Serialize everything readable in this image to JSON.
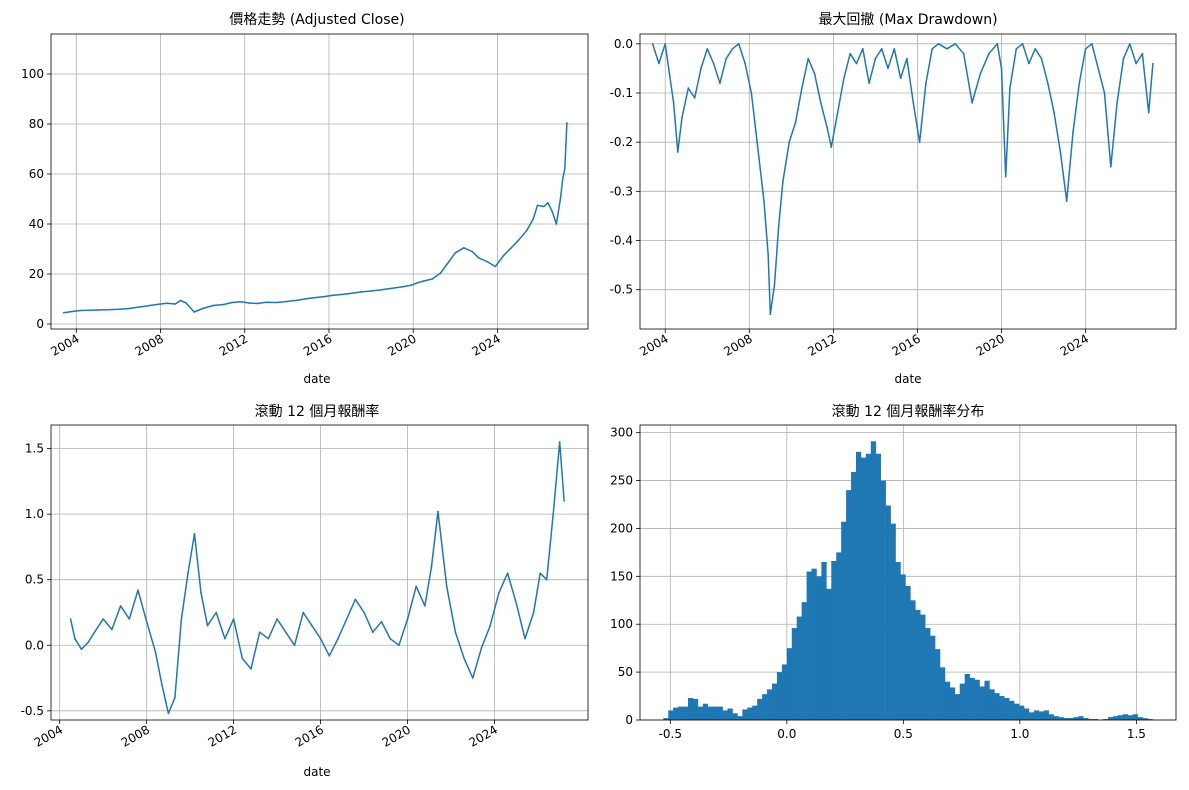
{
  "series_color": "#1f77b4",
  "chart_data": [
    {
      "type": "line",
      "title": "價格走勢 (Adjusted Close)",
      "xlabel": "date",
      "ylabel": "",
      "xlim": [
        2002.8,
        2028.3
      ],
      "ylim": [
        -2,
        116
      ],
      "xticks": [
        2004,
        2008,
        2012,
        2016,
        2020,
        2024
      ],
      "yticks": [
        0,
        20,
        40,
        60,
        80,
        100
      ],
      "ytick_labels": [
        "0",
        "20",
        "40",
        "60",
        "80",
        "100"
      ],
      "grid": true,
      "x": [
        2003.4,
        2003.8,
        2004.2,
        2004.6,
        2005.0,
        2005.5,
        2006.0,
        2006.5,
        2007.0,
        2007.5,
        2007.9,
        2008.3,
        2008.7,
        2008.95,
        2009.2,
        2009.6,
        2010.0,
        2010.5,
        2011.0,
        2011.4,
        2011.8,
        2012.2,
        2012.6,
        2013.0,
        2013.5,
        2014.0,
        2014.5,
        2015.0,
        2015.4,
        2015.8,
        2016.2,
        2016.6,
        2017.0,
        2017.5,
        2018.0,
        2018.5,
        2019.0,
        2019.5,
        2019.9,
        2020.2,
        2020.5,
        2020.9,
        2021.3,
        2021.7,
        2022.0,
        2022.4,
        2022.8,
        2023.1,
        2023.5,
        2023.9,
        2024.3,
        2024.6,
        2025.0,
        2025.4,
        2025.7,
        2025.9,
        2026.2,
        2026.4,
        2026.6,
        2026.8,
        2027.0,
        2027.1,
        2027.2,
        2027.3
      ],
      "y": [
        4.5,
        5.0,
        5.4,
        5.5,
        5.6,
        5.7,
        5.9,
        6.2,
        6.8,
        7.4,
        7.9,
        8.3,
        8.0,
        9.4,
        8.5,
        4.8,
        6.2,
        7.4,
        7.8,
        8.6,
        8.9,
        8.4,
        8.2,
        8.7,
        8.6,
        9.0,
        9.5,
        10.2,
        10.6,
        11.0,
        11.5,
        11.8,
        12.2,
        12.8,
        13.2,
        13.7,
        14.3,
        14.9,
        15.5,
        16.5,
        17.2,
        18.0,
        20.4,
        25.0,
        28.5,
        30.5,
        29.0,
        26.5,
        25.0,
        23.0,
        27.5,
        30.0,
        33.5,
        37.5,
        42.0,
        47.5,
        47.0,
        48.5,
        45.0,
        40.0,
        50.5,
        58.0,
        62.0,
        80.5
      ]
    },
    {
      "type": "line",
      "title": "最大回撤 (Max Drawdown)",
      "xlabel": "date",
      "ylabel": "",
      "xlim": [
        2002.8,
        2028.3
      ],
      "ylim": [
        -0.58,
        0.02
      ],
      "xticks": [
        2004,
        2008,
        2012,
        2016,
        2020,
        2024
      ],
      "yticks": [
        0.0,
        -0.1,
        -0.2,
        -0.3,
        -0.4,
        -0.5
      ],
      "ytick_labels": [
        "0.0",
        "-0.1",
        "-0.2",
        "-0.3",
        "-0.4",
        "-0.5"
      ],
      "grid": true,
      "x": [
        2003.4,
        2003.7,
        2004.0,
        2004.2,
        2004.4,
        2004.6,
        2004.8,
        2005.1,
        2005.4,
        2005.7,
        2006.0,
        2006.3,
        2006.6,
        2006.9,
        2007.2,
        2007.5,
        2007.8,
        2008.1,
        2008.4,
        2008.7,
        2008.9,
        2009.0,
        2009.2,
        2009.4,
        2009.6,
        2009.9,
        2010.2,
        2010.5,
        2010.8,
        2011.1,
        2011.4,
        2011.7,
        2011.9,
        2012.2,
        2012.5,
        2012.8,
        2013.1,
        2013.4,
        2013.7,
        2014.0,
        2014.3,
        2014.6,
        2014.9,
        2015.2,
        2015.5,
        2015.8,
        2016.1,
        2016.4,
        2016.7,
        2017.0,
        2017.4,
        2017.8,
        2018.2,
        2018.6,
        2019.0,
        2019.4,
        2019.8,
        2020.0,
        2020.2,
        2020.4,
        2020.7,
        2021.0,
        2021.3,
        2021.6,
        2021.9,
        2022.2,
        2022.5,
        2022.8,
        2023.1,
        2023.4,
        2023.7,
        2024.0,
        2024.3,
        2024.6,
        2024.9,
        2025.2,
        2025.5,
        2025.8,
        2026.1,
        2026.4,
        2026.7,
        2027.0,
        2027.2
      ],
      "y": [
        0.0,
        -0.04,
        0.0,
        -0.06,
        -0.12,
        -0.22,
        -0.15,
        -0.09,
        -0.11,
        -0.05,
        -0.01,
        -0.04,
        -0.08,
        -0.03,
        -0.01,
        0.0,
        -0.04,
        -0.1,
        -0.21,
        -0.32,
        -0.43,
        -0.55,
        -0.49,
        -0.37,
        -0.28,
        -0.2,
        -0.16,
        -0.09,
        -0.03,
        -0.06,
        -0.12,
        -0.17,
        -0.21,
        -0.14,
        -0.07,
        -0.02,
        -0.04,
        -0.01,
        -0.08,
        -0.03,
        -0.01,
        -0.05,
        -0.01,
        -0.07,
        -0.03,
        -0.12,
        -0.2,
        -0.08,
        -0.01,
        0.0,
        -0.01,
        0.0,
        -0.02,
        -0.12,
        -0.06,
        -0.02,
        0.0,
        -0.05,
        -0.27,
        -0.09,
        -0.01,
        0.0,
        -0.04,
        -0.01,
        -0.03,
        -0.08,
        -0.14,
        -0.22,
        -0.32,
        -0.18,
        -0.08,
        -0.01,
        0.0,
        -0.05,
        -0.1,
        -0.25,
        -0.12,
        -0.03,
        0.0,
        -0.04,
        -0.02,
        -0.14,
        -0.04
      ]
    },
    {
      "type": "line",
      "title": "滾動 12 個月報酬率",
      "xlabel": "date",
      "ylabel": "",
      "xlim": [
        2003.6,
        2028.3
      ],
      "ylim": [
        -0.57,
        1.68
      ],
      "xticks": [
        2004,
        2008,
        2012,
        2016,
        2020,
        2024
      ],
      "yticks": [
        -0.5,
        0.0,
        0.5,
        1.0,
        1.5
      ],
      "ytick_labels": [
        "-0.5",
        "0.0",
        "0.5",
        "1.0",
        "1.5"
      ],
      "grid": true,
      "x": [
        2004.5,
        2004.7,
        2005.0,
        2005.3,
        2005.6,
        2006.0,
        2006.4,
        2006.8,
        2007.2,
        2007.6,
        2008.0,
        2008.4,
        2008.7,
        2009.0,
        2009.3,
        2009.6,
        2009.9,
        2010.2,
        2010.5,
        2010.8,
        2011.2,
        2011.6,
        2012.0,
        2012.4,
        2012.8,
        2013.2,
        2013.6,
        2014.0,
        2014.4,
        2014.8,
        2015.2,
        2015.6,
        2016.0,
        2016.4,
        2016.8,
        2017.2,
        2017.6,
        2018.0,
        2018.4,
        2018.8,
        2019.2,
        2019.6,
        2020.0,
        2020.4,
        2020.8,
        2021.1,
        2021.4,
        2021.8,
        2022.2,
        2022.6,
        2023.0,
        2023.4,
        2023.8,
        2024.2,
        2024.6,
        2025.0,
        2025.4,
        2025.8,
        2026.1,
        2026.4,
        2026.7,
        2027.0,
        2027.2
      ],
      "y": [
        0.2,
        0.05,
        -0.03,
        0.02,
        0.1,
        0.2,
        0.12,
        0.3,
        0.2,
        0.42,
        0.18,
        -0.05,
        -0.3,
        -0.52,
        -0.4,
        0.2,
        0.55,
        0.85,
        0.4,
        0.15,
        0.25,
        0.05,
        0.2,
        -0.1,
        -0.18,
        0.1,
        0.05,
        0.2,
        0.1,
        0.0,
        0.25,
        0.15,
        0.05,
        -0.08,
        0.05,
        0.2,
        0.35,
        0.25,
        0.1,
        0.18,
        0.05,
        0.0,
        0.2,
        0.45,
        0.3,
        0.6,
        1.02,
        0.45,
        0.1,
        -0.1,
        -0.25,
        -0.02,
        0.15,
        0.4,
        0.55,
        0.32,
        0.05,
        0.25,
        0.55,
        0.5,
        1.0,
        1.55,
        1.1
      ]
    },
    {
      "type": "bar",
      "title": "滾動 12 個月報酬率分布",
      "xlabel": "",
      "ylabel": "",
      "xlim": [
        -0.63,
        1.67
      ],
      "ylim": [
        0,
        308
      ],
      "xticks": [
        -0.5,
        0.0,
        0.5,
        1.0,
        1.5
      ],
      "xtick_labels": [
        "-0.5",
        "0.0",
        "0.5",
        "1.0",
        "1.5"
      ],
      "yticks": [
        0,
        50,
        100,
        150,
        200,
        250,
        300
      ],
      "ytick_labels": [
        "0",
        "50",
        "100",
        "150",
        "200",
        "250",
        "300"
      ],
      "grid": true,
      "bins": 100,
      "bin_start": -0.53,
      "bin_width": 0.0212,
      "values": [
        2,
        10,
        13,
        14,
        14,
        23,
        22,
        14,
        17,
        14,
        14,
        14,
        10,
        12,
        7,
        4,
        11,
        13,
        15,
        22,
        27,
        32,
        38,
        50,
        58,
        75,
        96,
        108,
        123,
        155,
        158,
        150,
        165,
        137,
        166,
        175,
        207,
        240,
        259,
        280,
        274,
        278,
        291,
        278,
        250,
        224,
        205,
        165,
        152,
        140,
        125,
        115,
        110,
        96,
        88,
        74,
        55,
        40,
        34,
        27,
        38,
        48,
        44,
        42,
        35,
        41,
        32,
        28,
        25,
        23,
        20,
        17,
        15,
        12,
        8,
        10,
        9,
        10,
        6,
        4,
        3,
        2,
        2,
        3,
        4,
        2,
        1,
        1,
        0,
        1,
        3,
        4,
        5,
        6,
        5,
        6,
        3,
        2,
        1,
        0
      ]
    }
  ]
}
